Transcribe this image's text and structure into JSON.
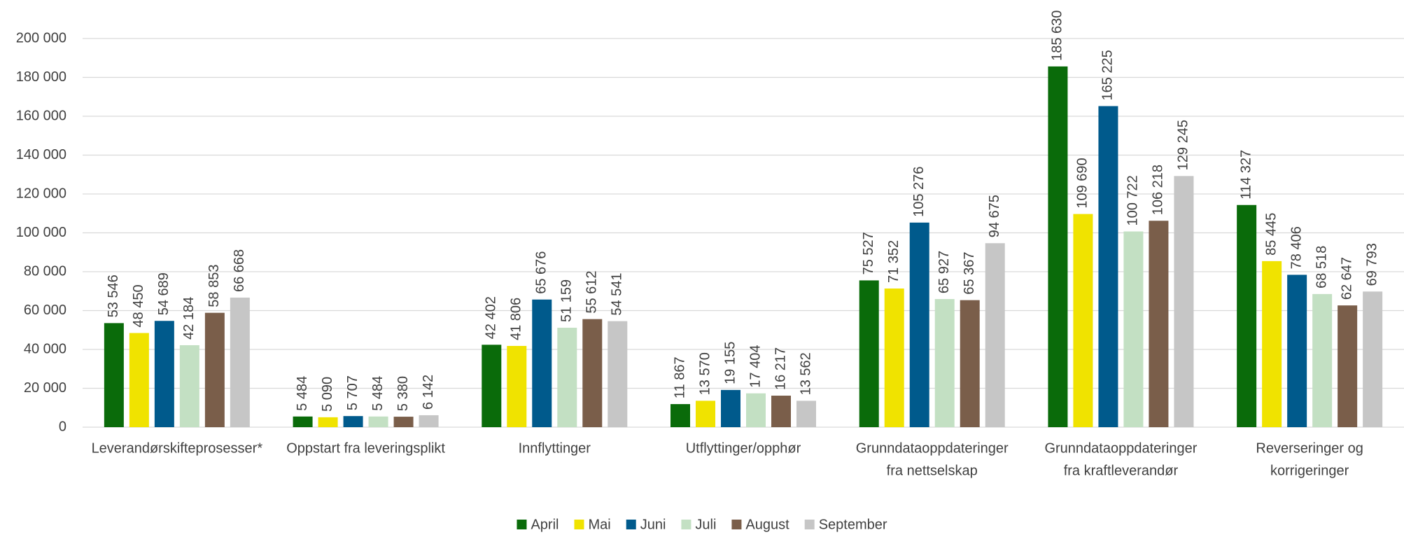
{
  "chart_data": {
    "type": "bar",
    "categories": [
      [
        "Leverandørskifteprosesser*"
      ],
      [
        "Oppstart fra leveringsplikt"
      ],
      [
        "Innflyttinger"
      ],
      [
        "Utflyttinger/opphør"
      ],
      [
        "Grunndataoppdateringer",
        "fra nettselskap"
      ],
      [
        "Grunndataoppdateringer",
        "fra kraftleverandør"
      ],
      [
        "Reverseringer og",
        "korrigeringer"
      ]
    ],
    "series": [
      {
        "name": "April",
        "color": "#0a6b0a",
        "values": [
          53546,
          5484,
          42402,
          11867,
          75527,
          185630,
          114327
        ],
        "value_labels": [
          "53 546",
          "5 484",
          "42 402",
          "11 867",
          "75 527",
          "185 630",
          "114 327"
        ]
      },
      {
        "name": "Mai",
        "color": "#f0e300",
        "values": [
          48450,
          5090,
          41806,
          13570,
          71352,
          109690,
          85445
        ],
        "value_labels": [
          "48 450",
          "5 090",
          "41 806",
          "13 570",
          "71 352",
          "109 690",
          "85 445"
        ]
      },
      {
        "name": "Juni",
        "color": "#005a8c",
        "values": [
          54689,
          5707,
          65676,
          19155,
          105276,
          165225,
          78406
        ],
        "value_labels": [
          "54 689",
          "5 707",
          "65 676",
          "19 155",
          "105 276",
          "165 225",
          "78 406"
        ]
      },
      {
        "name": "Juli",
        "color": "#c3e0c3",
        "values": [
          42184,
          5484,
          51159,
          17404,
          65927,
          100722,
          68518
        ],
        "value_labels": [
          "42 184",
          "5 484",
          "51 159",
          "17 404",
          "65 927",
          "100 722",
          "68 518"
        ]
      },
      {
        "name": "August",
        "color": "#7a5e4a",
        "values": [
          58853,
          5380,
          55612,
          16217,
          65367,
          106218,
          62647
        ],
        "value_labels": [
          "58 853",
          "5 380",
          "55 612",
          "16 217",
          "65 367",
          "106 218",
          "62 647"
        ]
      },
      {
        "name": "September",
        "color": "#c6c6c6",
        "values": [
          66668,
          6142,
          54541,
          13562,
          94675,
          129245,
          69793
        ],
        "value_labels": [
          "66 668",
          "6 142",
          "54 541",
          "13 562",
          "94 675",
          "129 245",
          "69 793"
        ]
      }
    ],
    "ylim": [
      0,
      200000
    ],
    "yticks": [
      0,
      {
        "value": 20000,
        "label": "20 000"
      },
      {
        "value": 40000,
        "label": "40 000"
      },
      {
        "value": 60000,
        "label": "60 000"
      },
      {
        "value": 80000,
        "label": "80 000"
      },
      {
        "value": 100000,
        "label": "100 000"
      },
      {
        "value": 120000,
        "label": "120 000"
      },
      {
        "value": 140000,
        "label": "140 000"
      },
      {
        "value": 160000,
        "label": "160 000"
      },
      {
        "value": 180000,
        "label": "180 000"
      },
      {
        "value": 200000,
        "label": "200 000"
      }
    ],
    "grid": true,
    "legend": "bottom"
  }
}
